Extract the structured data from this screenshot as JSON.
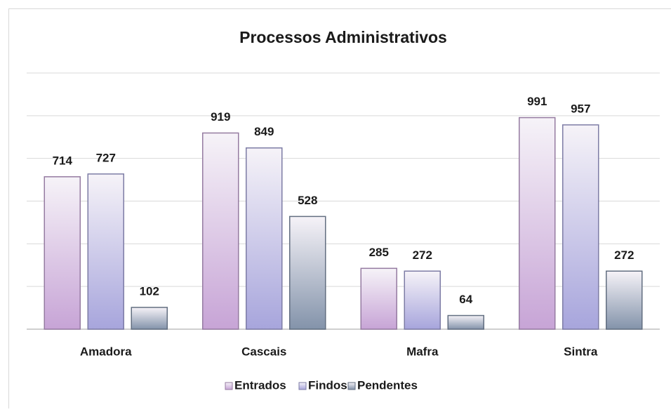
{
  "chart_data": {
    "type": "bar",
    "title": "Processos Administrativos",
    "categories": [
      "Amadora",
      "Cascais",
      "Mafra",
      "Sintra"
    ],
    "series": [
      {
        "name": "Entrados",
        "color": "#c7a4d6",
        "values": [
          714,
          919,
          285,
          991
        ]
      },
      {
        "name": "Findos",
        "color": "#a7a5dc",
        "values": [
          727,
          849,
          272,
          957
        ]
      },
      {
        "name": "Pendentes",
        "color": "#8393aa",
        "values": [
          102,
          528,
          64,
          272
        ]
      }
    ],
    "ylim": [
      0,
      1200
    ],
    "yticks": [
      0,
      200,
      400,
      600,
      800,
      1000,
      1200
    ],
    "grid": true,
    "legend": "bottom"
  }
}
